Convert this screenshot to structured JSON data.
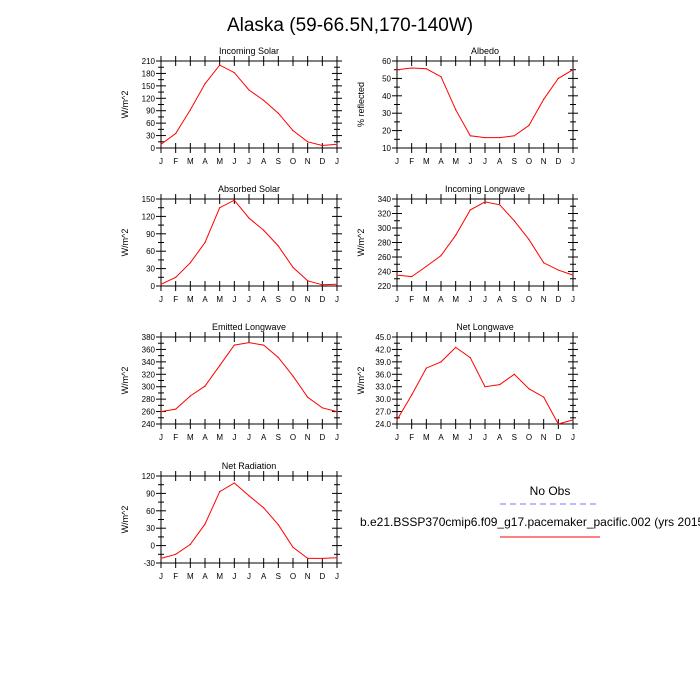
{
  "page_title": "Alaska (59-66.5N,170-140W)",
  "colors": {
    "model_line": "#ff0000",
    "obs_line": "#7777ff",
    "axis": "#000000"
  },
  "legend": {
    "obs_label": "No Obs",
    "model_label": "b.e21.BSSP370cmip6.f09_g17.pacemaker_pacific.002 (yrs 2015"
  },
  "chart_data": [
    {
      "type": "line",
      "title": "Incoming Solar",
      "ylabel": "W/m^2",
      "x": [
        "J",
        "F",
        "M",
        "A",
        "M",
        "J",
        "J",
        "A",
        "S",
        "O",
        "N",
        "D",
        "J"
      ],
      "ylim": [
        0,
        210
      ],
      "yticks": [
        0,
        15,
        30,
        45,
        60,
        75,
        90,
        105,
        120,
        135,
        150,
        165,
        180,
        195,
        210
      ],
      "yticklabels": [
        "0",
        "30",
        "60",
        "90",
        "120",
        "150",
        "180",
        "210"
      ],
      "series": [
        {
          "values": [
            9,
            35,
            92,
            155,
            200,
            182,
            140,
            115,
            84,
            42,
            15,
            6,
            9
          ]
        }
      ]
    },
    {
      "type": "line",
      "title": "Albedo",
      "ylabel": "% reflected",
      "x": [
        "J",
        "F",
        "M",
        "A",
        "M",
        "J",
        "J",
        "A",
        "S",
        "O",
        "N",
        "D",
        "J"
      ],
      "ylim": [
        10,
        60
      ],
      "yticks": [
        10,
        15,
        20,
        25,
        30,
        35,
        40,
        45,
        50,
        55,
        60
      ],
      "yticklabels": [
        "10",
        "20",
        "30",
        "40",
        "50",
        "60"
      ],
      "series": [
        {
          "values": [
            55,
            56,
            55.5,
            51,
            32,
            17,
            16,
            16,
            17,
            23,
            38,
            50,
            55
          ]
        }
      ]
    },
    {
      "type": "line",
      "title": "Absorbed Solar",
      "ylabel": "W/m^2",
      "x": [
        "J",
        "F",
        "M",
        "A",
        "M",
        "J",
        "J",
        "A",
        "S",
        "O",
        "N",
        "D",
        "J"
      ],
      "ylim": [
        0,
        150
      ],
      "yticks": [
        0,
        15,
        30,
        45,
        60,
        75,
        90,
        105,
        120,
        135,
        150
      ],
      "yticklabels": [
        "0",
        "30",
        "60",
        "90",
        "120",
        "150"
      ],
      "series": [
        {
          "values": [
            3,
            15,
            40,
            75,
            135,
            148,
            117,
            96,
            69,
            32,
            9,
            2,
            3
          ]
        }
      ]
    },
    {
      "type": "line",
      "title": "Incoming Longwave",
      "ylabel": "W/m^2",
      "x": [
        "J",
        "F",
        "M",
        "A",
        "M",
        "J",
        "J",
        "A",
        "S",
        "O",
        "N",
        "D",
        "J"
      ],
      "ylim": [
        220,
        340
      ],
      "yticks": [
        220,
        230,
        240,
        250,
        260,
        270,
        280,
        290,
        300,
        310,
        320,
        330,
        340
      ],
      "yticklabels": [
        "220",
        "240",
        "260",
        "280",
        "300",
        "320",
        "340"
      ],
      "series": [
        {
          "values": [
            235,
            233,
            247,
            262,
            290,
            325,
            336,
            332,
            310,
            284,
            252,
            242,
            235
          ]
        }
      ]
    },
    {
      "type": "line",
      "title": "Emitted Longwave",
      "ylabel": "W/m^2",
      "x": [
        "J",
        "F",
        "M",
        "A",
        "M",
        "J",
        "J",
        "A",
        "S",
        "O",
        "N",
        "D",
        "J"
      ],
      "ylim": [
        240,
        380
      ],
      "yticks": [
        240,
        250,
        260,
        270,
        280,
        290,
        300,
        310,
        320,
        330,
        340,
        350,
        360,
        370,
        380
      ],
      "yticklabels": [
        "240",
        "260",
        "280",
        "300",
        "320",
        "340",
        "360",
        "380"
      ],
      "series": [
        {
          "values": [
            260,
            264,
            285,
            301,
            334,
            367,
            371,
            367,
            347,
            317,
            283,
            266,
            260
          ]
        }
      ]
    },
    {
      "type": "line",
      "title": "Net Longwave",
      "ylabel": "W/m^2",
      "x": [
        "J",
        "F",
        "M",
        "A",
        "M",
        "J",
        "J",
        "A",
        "S",
        "O",
        "N",
        "D",
        "J"
      ],
      "ylim": [
        24,
        45
      ],
      "yticks": [
        24,
        25.5,
        27,
        28.5,
        30,
        31.5,
        33,
        34.5,
        36,
        37.5,
        39,
        40.5,
        42,
        43.5,
        45
      ],
      "yticklabels": [
        "24.0",
        "27.0",
        "30.0",
        "33.0",
        "36.0",
        "39.0",
        "42.0",
        "45.0"
      ],
      "series": [
        {
          "values": [
            25,
            31,
            37.5,
            39,
            42.5,
            40,
            33,
            33.5,
            36,
            32.5,
            30.5,
            24,
            25
          ]
        }
      ]
    },
    {
      "type": "line",
      "title": "Net Radiation",
      "ylabel": "W/m^2",
      "x": [
        "J",
        "F",
        "M",
        "A",
        "M",
        "J",
        "J",
        "A",
        "S",
        "O",
        "N",
        "D",
        "J"
      ],
      "ylim": [
        -30,
        120
      ],
      "yticks": [
        -30,
        -15,
        0,
        15,
        30,
        45,
        60,
        75,
        90,
        105,
        120
      ],
      "yticklabels": [
        "-30",
        "0",
        "30",
        "60",
        "90",
        "120"
      ],
      "series": [
        {
          "values": [
            -22,
            -15,
            2,
            37,
            93,
            108,
            86,
            65,
            36,
            -3,
            -22,
            -22,
            -21
          ]
        }
      ]
    }
  ]
}
